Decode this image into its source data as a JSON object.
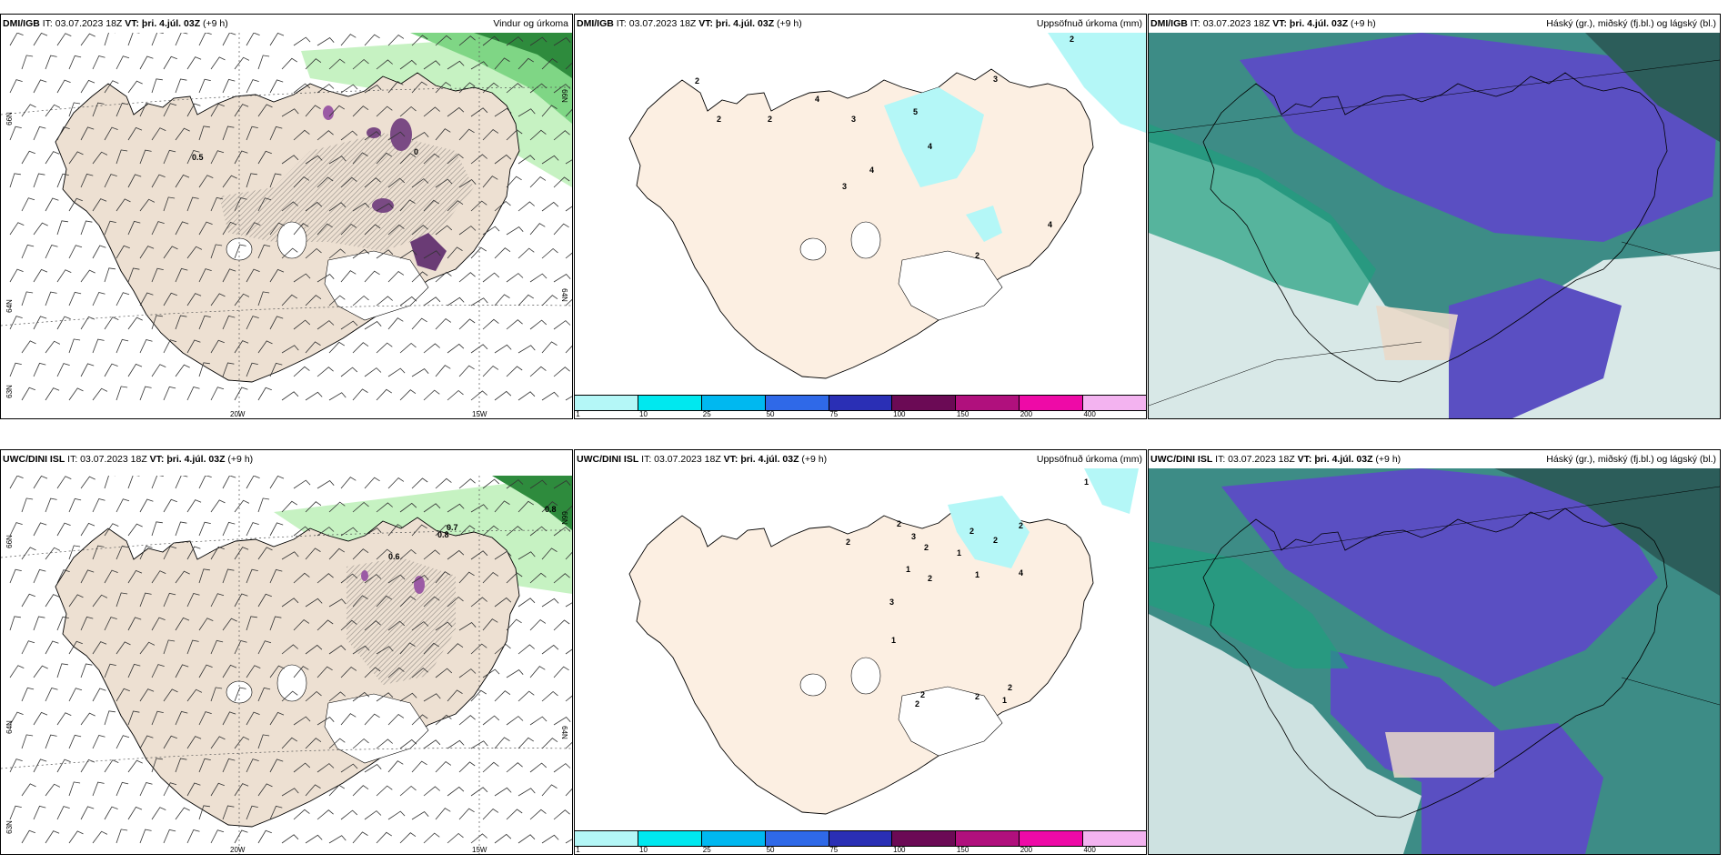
{
  "panels": [
    {
      "left_bold": "DMI/IGB",
      "left_mid": " IT: 03.07.2023 18Z ",
      "vt_bold": "VT: þri. 4.júl. 03Z",
      "vt_tail": " (+9 h)",
      "right": "Vindur og úrkoma"
    },
    {
      "left_bold": "DMI/IGB",
      "left_mid": " IT: 03.07.2023 18Z ",
      "vt_bold": "VT: þri. 4.júl. 03Z",
      "vt_tail": " (+9 h)",
      "right": "Uppsöfnuð úrkoma (mm)"
    },
    {
      "left_bold": "DMI/IGB",
      "left_mid": " IT: 03.07.2023 18Z ",
      "vt_bold": "VT: þri. 4.júl. 03Z",
      "vt_tail": " (+9 h)",
      "right": "Háský (gr.), miðský (fj.bl.) og lágský (bl.)"
    },
    {
      "left_bold": "UWC/DINI ISL",
      "left_mid": " IT: 03.07.2023 18Z ",
      "vt_bold": "VT: þri. 4.júl. 03Z",
      "vt_tail": " (+9 h)",
      "right": ""
    },
    {
      "left_bold": "UWC/DINI ISL",
      "left_mid": " IT: 03.07.2023 18Z ",
      "vt_bold": "VT: þri. 4.júl. 03Z",
      "vt_tail": " (+9 h)",
      "right": "Uppsöfnuð úrkoma (mm)"
    },
    {
      "left_bold": "UWC/DINI ISL",
      "left_mid": " IT: 03.07.2023 18Z ",
      "vt_bold": "VT: þri. 4.júl. 03Z",
      "vt_tail": " (+9 h)",
      "right": "Háský (gr.), miðský (fj.bl.) og lágský (bl.)"
    }
  ],
  "wind_ticks": {
    "lat1": "66N",
    "lat2": "64N",
    "lat3": "63N",
    "lon1": "20W",
    "lon2": "15W",
    "lat_b1": "66N",
    "lat_b2": "64N",
    "lat_b3": "63N",
    "lon_b1": "20W",
    "lon_b2": "15W"
  },
  "wind_labels_top": [
    "0.5",
    "0"
  ],
  "wind_labels_bottom": [
    "0.6",
    "0.8",
    "0.7",
    "0.8"
  ],
  "precip_labels_top": [
    "2",
    "2",
    "2",
    "2",
    "4",
    "3",
    "4",
    "3",
    "4",
    "5",
    "3",
    "4",
    "2"
  ],
  "precip_labels_bottom": [
    "1",
    "2",
    "3",
    "2",
    "1",
    "2",
    "2",
    "1",
    "2",
    "2",
    "2",
    "4",
    "1",
    "3",
    "1",
    "2",
    "1",
    "2",
    "2",
    "2"
  ],
  "colorbar": {
    "colors": [
      "#b4f7f7",
      "#00e8ef",
      "#00b8f0",
      "#2f69e8",
      "#2a2fb5",
      "#6b0a55",
      "#b0107d",
      "#ee0aa7",
      "#f3b3f0"
    ],
    "labels": [
      "1",
      "10",
      "25",
      "50",
      "75",
      "100",
      "150",
      "200",
      "400"
    ]
  }
}
